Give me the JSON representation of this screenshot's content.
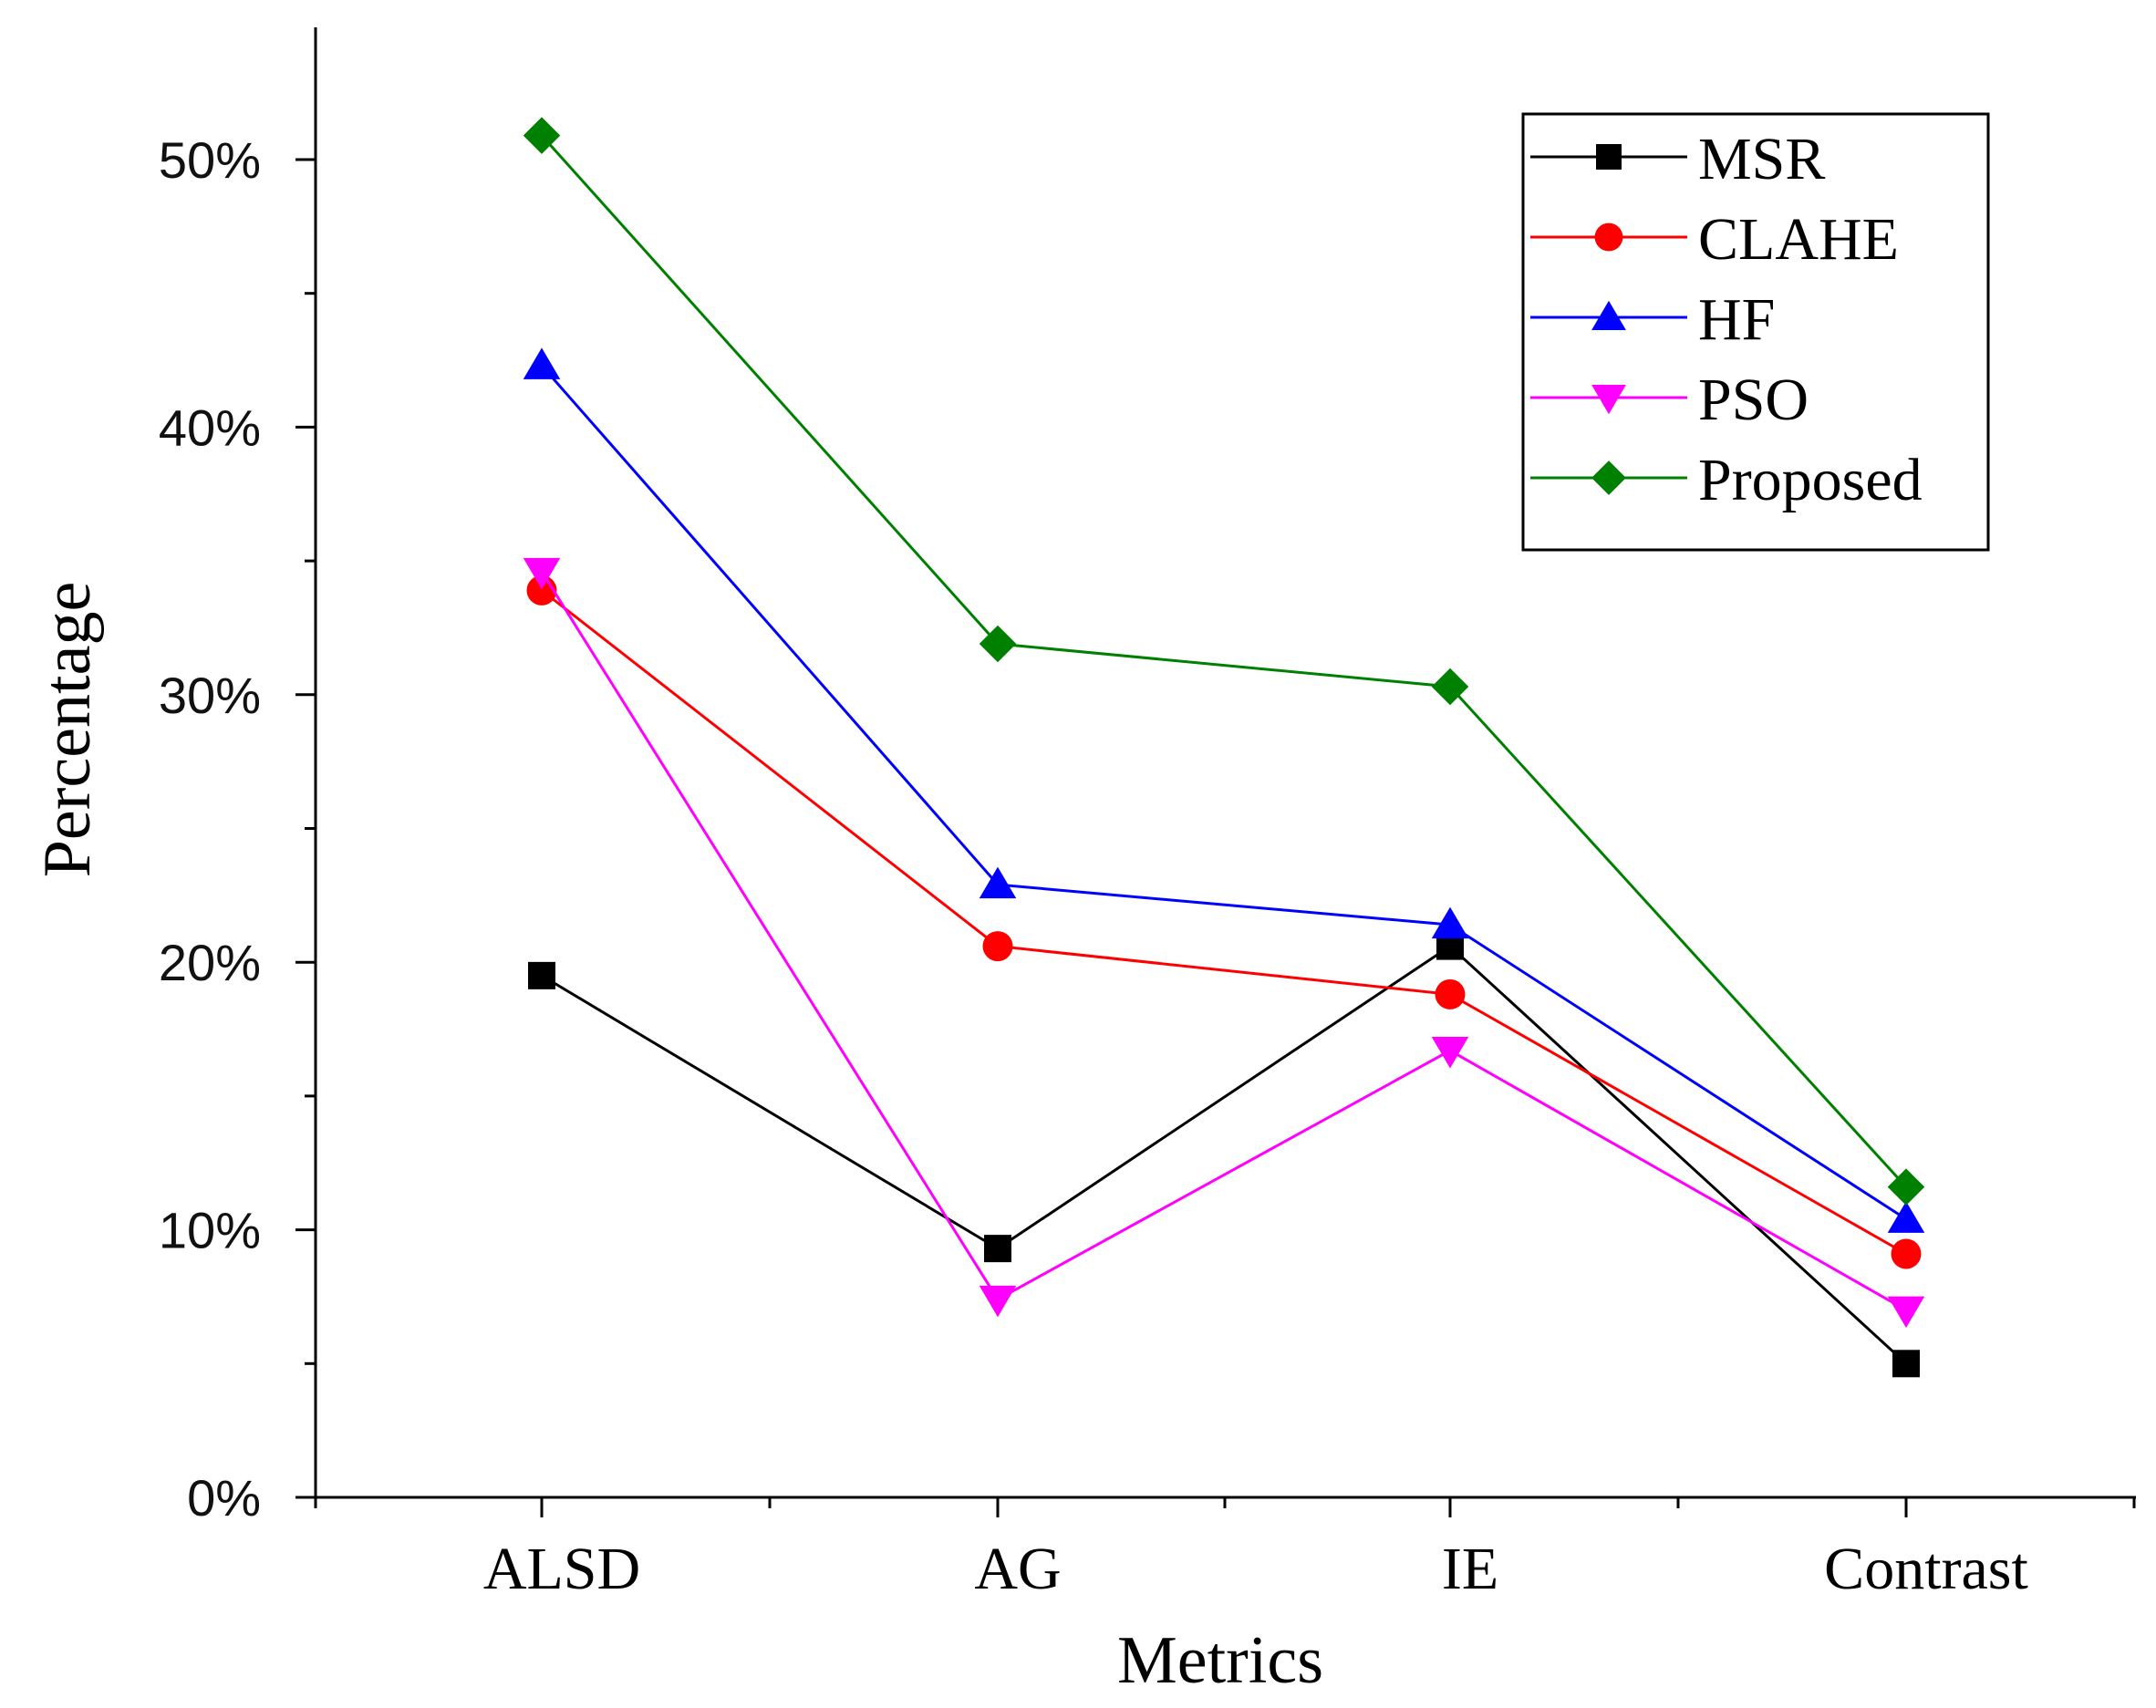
{
  "chart_data": {
    "type": "line",
    "title": "",
    "xlabel": "Metrics",
    "ylabel": "Percentage",
    "categories": [
      "ALSD",
      "AG",
      "IE",
      "Contrast"
    ],
    "ylim": [
      0,
      55
    ],
    "yticks": [
      0,
      10,
      20,
      30,
      40,
      50
    ],
    "ytick_labels": [
      "0%",
      "10%",
      "20%",
      "30%",
      "40%",
      "50%"
    ],
    "legend_position": "top-right",
    "series": [
      {
        "name": "MSR",
        "color": "#000000",
        "marker": "square",
        "values": [
          19.5,
          9.3,
          20.6,
          5.0
        ]
      },
      {
        "name": "CLAHE",
        "color": "#ff0000",
        "marker": "circle",
        "values": [
          33.9,
          20.6,
          18.8,
          9.1
        ]
      },
      {
        "name": "HF",
        "color": "#0000ff",
        "marker": "triangle-up",
        "values": [
          42.3,
          22.9,
          21.4,
          10.4
        ]
      },
      {
        "name": "PSO",
        "color": "#ff00ff",
        "marker": "triangle-down",
        "values": [
          34.6,
          7.4,
          16.7,
          7.0
        ]
      },
      {
        "name": "Proposed",
        "color": "#008000",
        "marker": "diamond",
        "values": [
          50.9,
          31.9,
          30.3,
          11.6
        ]
      }
    ]
  }
}
